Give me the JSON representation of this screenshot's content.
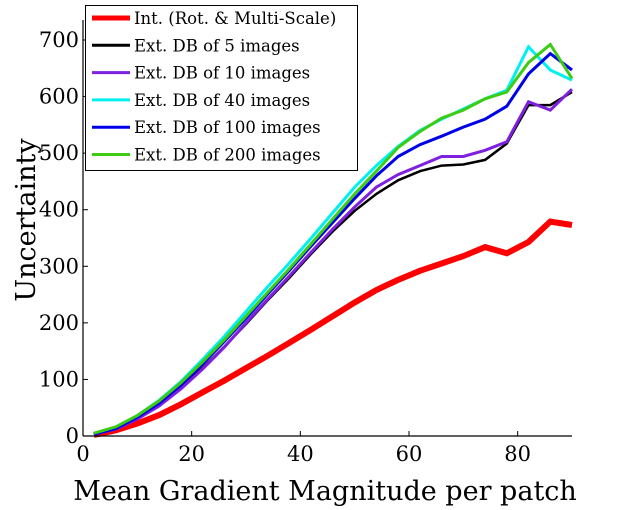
{
  "chart_data": {
    "type": "line",
    "title": "",
    "xlabel": "Mean Gradient Magnitude per patch",
    "ylabel": "Uncertainty",
    "xlim": [
      0,
      90
    ],
    "ylim": [
      0,
      700
    ],
    "xticks": [
      0,
      20,
      40,
      60,
      80
    ],
    "yticks": [
      0,
      100,
      200,
      300,
      400,
      500,
      600,
      700
    ],
    "xtick_labels": [
      "0",
      "20",
      "40",
      "60",
      "80"
    ],
    "ytick_labels": [
      "0",
      "100",
      "200",
      "300",
      "400",
      "500",
      "600",
      "700"
    ],
    "grid": false,
    "legend_position": "top-left",
    "x": [
      2,
      6,
      10,
      14,
      18,
      22,
      26,
      30,
      34,
      38,
      42,
      46,
      50,
      54,
      58,
      62,
      66,
      70,
      74,
      78,
      82,
      86,
      90
    ],
    "series": [
      {
        "name": "Int. (Rot. & Multi-Scale)",
        "color": "#ff0000",
        "width": 6,
        "values": [
          2,
          10,
          22,
          37,
          56,
          77,
          98,
          120,
          142,
          165,
          188,
          212,
          236,
          258,
          276,
          292,
          305,
          318,
          334,
          323,
          343,
          379,
          373
        ]
      },
      {
        "name": "Ext. DB of 5 images",
        "color": "#000000",
        "width": 2.5,
        "values": [
          3,
          12,
          30,
          55,
          85,
          120,
          158,
          198,
          240,
          280,
          322,
          362,
          398,
          428,
          452,
          468,
          478,
          480,
          488,
          517,
          585,
          585,
          608
        ]
      },
      {
        "name": "Ext. DB of 10 images",
        "color": "#7f1fe0",
        "width": 3,
        "values": [
          3,
          12,
          30,
          53,
          83,
          118,
          157,
          200,
          242,
          283,
          325,
          366,
          405,
          440,
          462,
          478,
          494,
          494,
          505,
          520,
          591,
          576,
          613
        ]
      },
      {
        "name": "Ext. DB of 40 images",
        "color": "#00f0f0",
        "width": 3,
        "values": [
          4,
          15,
          36,
          63,
          96,
          135,
          176,
          220,
          264,
          306,
          350,
          395,
          440,
          478,
          512,
          540,
          560,
          578,
          596,
          611,
          688,
          647,
          629
        ]
      },
      {
        "name": "Ext. DB of 100 images",
        "color": "#0000e8",
        "width": 3,
        "values": [
          3,
          13,
          33,
          58,
          90,
          127,
          167,
          208,
          251,
          293,
          336,
          378,
          420,
          460,
          494,
          515,
          530,
          546,
          560,
          583,
          640,
          676,
          647
        ]
      },
      {
        "name": "Ext. DB of 200 images",
        "color": "#3ccc14",
        "width": 3,
        "values": [
          5,
          16,
          36,
          62,
          94,
          131,
          170,
          212,
          254,
          296,
          340,
          384,
          428,
          468,
          510,
          538,
          562,
          576,
          596,
          608,
          660,
          692,
          632
        ]
      }
    ]
  }
}
